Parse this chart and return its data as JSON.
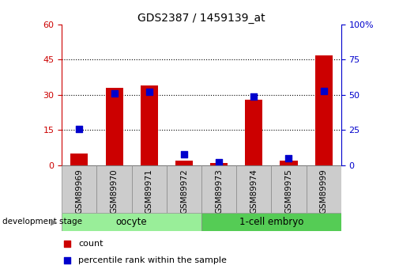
{
  "title": "GDS2387 / 1459139_at",
  "samples": [
    "GSM89969",
    "GSM89970",
    "GSM89971",
    "GSM89972",
    "GSM89973",
    "GSM89974",
    "GSM89975",
    "GSM89999"
  ],
  "counts": [
    5,
    33,
    34,
    2,
    1,
    28,
    2,
    47
  ],
  "percentile_ranks": [
    26,
    51,
    52,
    8,
    2,
    49,
    5,
    53
  ],
  "ylim_left": [
    0,
    60
  ],
  "ylim_right": [
    0,
    100
  ],
  "yticks_left": [
    0,
    15,
    30,
    45,
    60
  ],
  "yticks_right": [
    0,
    25,
    50,
    75,
    100
  ],
  "ytick_labels_left": [
    "0",
    "15",
    "30",
    "45",
    "60"
  ],
  "ytick_labels_right": [
    "0",
    "25",
    "50",
    "75",
    "100%"
  ],
  "bar_color": "#cc0000",
  "dot_color": "#0000cc",
  "group1_label": "oocyte",
  "group2_label": "1-cell embryo",
  "group1_color": "#99ee99",
  "group2_color": "#55cc55",
  "group1_indices": [
    0,
    1,
    2,
    3
  ],
  "group2_indices": [
    4,
    5,
    6,
    7
  ],
  "legend_count_label": "count",
  "legend_pct_label": "percentile rank within the sample",
  "xlabel_stage": "development stage",
  "bar_width": 0.5,
  "dot_size": 30,
  "tick_label_color_left": "#cc0000",
  "tick_label_color_right": "#0000cc",
  "label_box_color": "#cccccc",
  "label_box_edge": "#888888"
}
